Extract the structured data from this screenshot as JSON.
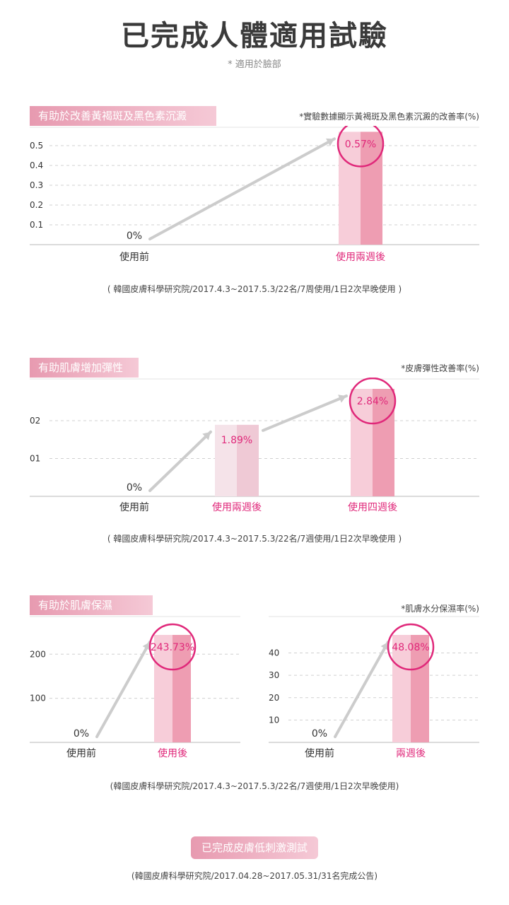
{
  "title": "已完成人體適用試驗",
  "subtitle": "* 適用於臉部",
  "footer_test_label": "已完成皮膚低刺激測試",
  "footer_source": "(韓國皮膚科學研究院/2017.04.28~2017.05.31/31名完成公告)",
  "colors": {
    "accent": "#e0287a",
    "bar_light": "#f7cdd9",
    "bar_dark": "#ee9db2",
    "bar_pale": "#f3dde4",
    "arrow": "#cccccc"
  },
  "chart_data": [
    {
      "type": "bar",
      "section_label": "有助於改善黃褐斑及黑色素沉澱",
      "unit_note": "*實驗數據顯示黃褐斑及黑色素沉澱的改善率(%)",
      "source": "( 韓國皮膚科學研究院/2017.4.3~2017.5.3/22名/7周使用/1日2次早晚使用 )",
      "categories": [
        "使用前",
        "使用兩週後"
      ],
      "values": [
        0,
        0.57
      ],
      "value_labels": [
        "0%",
        "0.57%"
      ],
      "yticks": [
        "0.5",
        "0.4",
        "0.3",
        "0.2",
        "0.1"
      ],
      "ytick_values": [
        0.5,
        0.4,
        0.3,
        0.2,
        0.1
      ],
      "ylim": [
        0,
        0.5
      ]
    },
    {
      "type": "bar",
      "section_label": "有助肌膚增加彈性",
      "unit_note": "*皮膚彈性改善率(%)",
      "source": "( 韓國皮膚科學研究院/2017.4.3~2017.5.3/22名/7週使用/1日2次早晚使用 )",
      "categories": [
        "使用前",
        "使用兩週後",
        "使用四週後"
      ],
      "values": [
        0,
        1.89,
        2.84
      ],
      "value_labels": [
        "0%",
        "1.89%",
        "2.84%"
      ],
      "yticks": [
        "02",
        "01"
      ],
      "ytick_values": [
        2,
        1
      ],
      "ylim": [
        0,
        2.84
      ]
    },
    {
      "type": "bar",
      "section_label": "有助於肌膚保濕",
      "source": "(韓國皮膚科學研究院/2017.4.3~2017.5.3/22名/7週使用/1日2次早晚使用)",
      "categories": [
        "使用前",
        "使用後"
      ],
      "values": [
        0,
        243.73
      ],
      "value_labels": [
        "0%",
        "243.73%"
      ],
      "yticks": [
        "200",
        "100"
      ],
      "ytick_values": [
        200,
        100
      ],
      "ylim": [
        0,
        243.73
      ]
    },
    {
      "type": "bar",
      "unit_note": "*肌膚水分保濕率(%)",
      "categories": [
        "使用前",
        "兩週後"
      ],
      "values": [
        0,
        48.08
      ],
      "value_labels": [
        "0%",
        "48.08%"
      ],
      "yticks": [
        "40",
        "30",
        "20",
        "10"
      ],
      "ytick_values": [
        40,
        30,
        20,
        10
      ],
      "ylim": [
        0,
        48.08
      ]
    }
  ]
}
